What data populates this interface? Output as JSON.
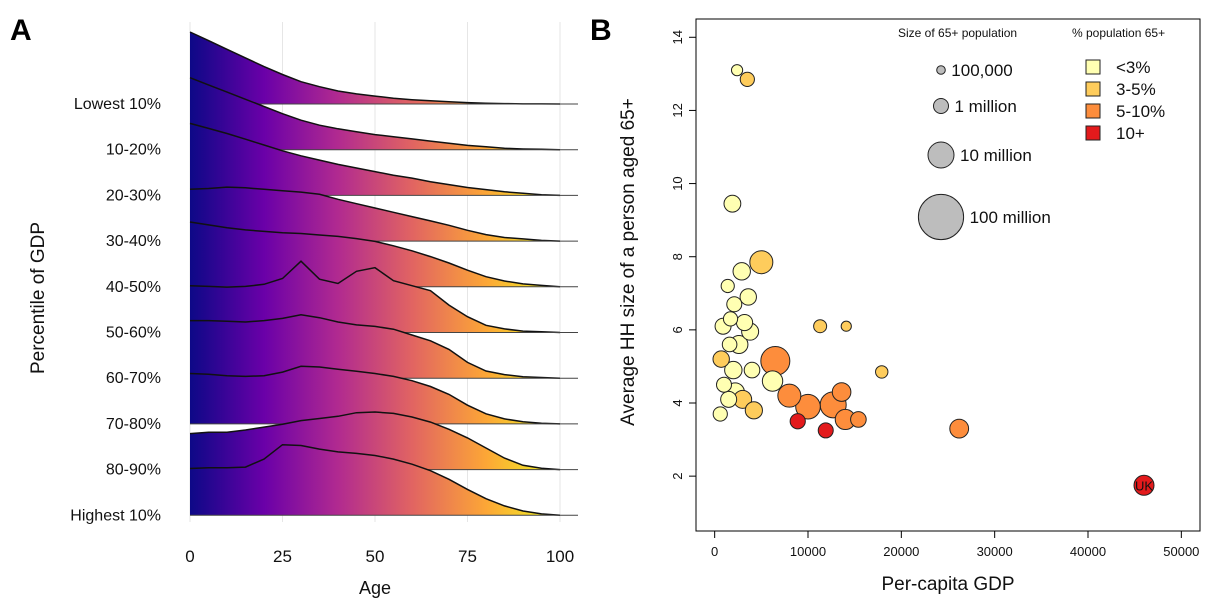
{
  "panels": {
    "a_letter": "A",
    "b_letter": "B"
  },
  "chart_data": [
    {
      "type": "area",
      "subtype": "ridgeline",
      "xlabel": "Age",
      "ylabel": "Percentile of GDP",
      "xlim": [
        0,
        100
      ],
      "xticks": [
        "0",
        "25",
        "50",
        "75",
        "100"
      ],
      "grid": "vertical",
      "fill_gradient": [
        "#0d0887",
        "#6a00a8",
        "#b12a90",
        "#e16462",
        "#fca636",
        "#f0f921"
      ],
      "x": [
        0,
        5,
        10,
        15,
        20,
        25,
        30,
        35,
        40,
        45,
        50,
        55,
        60,
        65,
        70,
        75,
        80,
        85,
        90,
        95,
        100
      ],
      "series": [
        {
          "name": "Lowest 10%",
          "values": [
            1.0,
            0.88,
            0.76,
            0.64,
            0.52,
            0.41,
            0.31,
            0.24,
            0.18,
            0.14,
            0.11,
            0.08,
            0.06,
            0.045,
            0.03,
            0.02,
            0.01,
            0.005,
            0.002,
            0.001,
            0
          ]
        },
        {
          "name": "10-20%",
          "values": [
            1.0,
            0.9,
            0.8,
            0.7,
            0.6,
            0.5,
            0.41,
            0.34,
            0.29,
            0.25,
            0.21,
            0.18,
            0.15,
            0.12,
            0.09,
            0.06,
            0.04,
            0.02,
            0.01,
            0.005,
            0
          ]
        },
        {
          "name": "20-30%",
          "values": [
            1.0,
            0.93,
            0.86,
            0.78,
            0.7,
            0.62,
            0.55,
            0.49,
            0.43,
            0.38,
            0.33,
            0.28,
            0.24,
            0.19,
            0.15,
            0.11,
            0.08,
            0.05,
            0.03,
            0.01,
            0
          ]
        },
        {
          "name": "30-40%",
          "values": [
            0.72,
            0.73,
            0.75,
            0.74,
            0.72,
            0.7,
            0.68,
            0.65,
            0.58,
            0.52,
            0.46,
            0.4,
            0.34,
            0.28,
            0.22,
            0.15,
            0.09,
            0.05,
            0.03,
            0.01,
            0
          ]
        },
        {
          "name": "40-50%",
          "values": [
            0.9,
            0.86,
            0.82,
            0.79,
            0.77,
            0.75,
            0.74,
            0.72,
            0.7,
            0.67,
            0.63,
            0.57,
            0.5,
            0.42,
            0.33,
            0.23,
            0.14,
            0.08,
            0.04,
            0.02,
            0
          ]
        },
        {
          "name": "50-60%",
          "values": [
            0.65,
            0.64,
            0.63,
            0.64,
            0.67,
            0.75,
            0.99,
            0.74,
            0.68,
            0.85,
            0.9,
            0.72,
            0.65,
            0.58,
            0.38,
            0.22,
            0.1,
            0.05,
            0.02,
            0.01,
            0
          ]
        },
        {
          "name": "60-70%",
          "values": [
            0.8,
            0.8,
            0.79,
            0.78,
            0.8,
            0.83,
            0.88,
            0.84,
            0.78,
            0.74,
            0.72,
            0.68,
            0.6,
            0.52,
            0.4,
            0.22,
            0.1,
            0.05,
            0.02,
            0.01,
            0
          ]
        },
        {
          "name": "70-80%",
          "values": [
            0.7,
            0.69,
            0.67,
            0.66,
            0.67,
            0.72,
            0.8,
            0.79,
            0.76,
            0.73,
            0.7,
            0.66,
            0.6,
            0.52,
            0.41,
            0.26,
            0.14,
            0.07,
            0.03,
            0.01,
            0
          ]
        },
        {
          "name": "80-90%",
          "values": [
            0.5,
            0.52,
            0.52,
            0.55,
            0.59,
            0.63,
            0.68,
            0.71,
            0.74,
            0.79,
            0.8,
            0.78,
            0.73,
            0.66,
            0.56,
            0.44,
            0.3,
            0.16,
            0.06,
            0.02,
            0
          ]
        },
        {
          "name": "Highest 10%",
          "values": [
            0.65,
            0.66,
            0.66,
            0.67,
            0.78,
            0.98,
            0.97,
            0.92,
            0.88,
            0.86,
            0.83,
            0.78,
            0.71,
            0.62,
            0.5,
            0.36,
            0.23,
            0.13,
            0.06,
            0.02,
            0
          ]
        }
      ]
    },
    {
      "type": "scatter",
      "subtype": "bubble",
      "xlabel": "Per-capita GDP",
      "ylabel": "Average HH size of a person aged 65+",
      "xlim": [
        -2000,
        52000
      ],
      "ylim": [
        0.5,
        14.5
      ],
      "xticks": [
        "0",
        "10000",
        "20000",
        "30000",
        "40000",
        "50000"
      ],
      "yticks": [
        "2",
        "4",
        "6",
        "8",
        "10",
        "12",
        "14"
      ],
      "grid": false,
      "size_legend": {
        "title": "Size of 65+ population",
        "entries": [
          {
            "label": "100,000",
            "pop": 100000
          },
          {
            "label": "1 million",
            "pop": 1000000
          },
          {
            "label": "10 million",
            "pop": 10000000
          },
          {
            "label": "100 million",
            "pop": 100000000
          }
        ]
      },
      "color_legend": {
        "title": "% population 65+",
        "entries": [
          {
            "label": "<3%",
            "color": "#ffffb2"
          },
          {
            "label": "3-5%",
            "color": "#fecc5c"
          },
          {
            "label": "5-10%",
            "color": "#fd8d3c"
          },
          {
            "label": "10+",
            "color": "#e31a1c"
          }
        ]
      },
      "points": [
        {
          "x": 2400,
          "y": 13.1,
          "pop": 300000,
          "cat": 0
        },
        {
          "x": 3500,
          "y": 12.85,
          "pop": 800000,
          "cat": 1
        },
        {
          "x": 1900,
          "y": 9.45,
          "pop": 1600000,
          "cat": 0
        },
        {
          "x": 5000,
          "y": 7.85,
          "pop": 6000000,
          "cat": 1
        },
        {
          "x": 2900,
          "y": 7.6,
          "pop": 1900000,
          "cat": 0
        },
        {
          "x": 1400,
          "y": 7.2,
          "pop": 600000,
          "cat": 0
        },
        {
          "x": 3600,
          "y": 6.9,
          "pop": 1500000,
          "cat": 0
        },
        {
          "x": 2100,
          "y": 6.7,
          "pop": 1000000,
          "cat": 0
        },
        {
          "x": 1700,
          "y": 6.3,
          "pop": 800000,
          "cat": 0
        },
        {
          "x": 3200,
          "y": 6.2,
          "pop": 1400000,
          "cat": 0
        },
        {
          "x": 900,
          "y": 6.1,
          "pop": 1300000,
          "cat": 0
        },
        {
          "x": 3800,
          "y": 5.95,
          "pop": 1700000,
          "cat": 0
        },
        {
          "x": 2600,
          "y": 5.6,
          "pop": 2200000,
          "cat": 0
        },
        {
          "x": 1600,
          "y": 5.6,
          "pop": 900000,
          "cat": 0
        },
        {
          "x": 700,
          "y": 5.2,
          "pop": 1500000,
          "cat": 1
        },
        {
          "x": 6500,
          "y": 5.15,
          "pop": 16000000,
          "cat": 2
        },
        {
          "x": 2000,
          "y": 4.9,
          "pop": 1900000,
          "cat": 0
        },
        {
          "x": 4000,
          "y": 4.9,
          "pop": 1200000,
          "cat": 0
        },
        {
          "x": 6200,
          "y": 4.6,
          "pop": 3600000,
          "cat": 0
        },
        {
          "x": 1000,
          "y": 4.5,
          "pop": 1000000,
          "cat": 0
        },
        {
          "x": 2200,
          "y": 4.3,
          "pop": 2400000,
          "cat": 0
        },
        {
          "x": 1500,
          "y": 4.1,
          "pop": 1300000,
          "cat": 0
        },
        {
          "x": 3000,
          "y": 4.1,
          "pop": 2200000,
          "cat": 1
        },
        {
          "x": 4200,
          "y": 3.8,
          "pop": 1800000,
          "cat": 1
        },
        {
          "x": 600,
          "y": 3.7,
          "pop": 800000,
          "cat": 0
        },
        {
          "x": 8000,
          "y": 4.2,
          "pop": 6000000,
          "cat": 2
        },
        {
          "x": 10000,
          "y": 3.9,
          "pop": 8000000,
          "cat": 2
        },
        {
          "x": 12700,
          "y": 3.95,
          "pop": 10000000,
          "cat": 2
        },
        {
          "x": 13600,
          "y": 4.3,
          "pop": 2500000,
          "cat": 2
        },
        {
          "x": 14000,
          "y": 3.55,
          "pop": 3500000,
          "cat": 2
        },
        {
          "x": 15400,
          "y": 3.55,
          "pop": 1200000,
          "cat": 2
        },
        {
          "x": 11300,
          "y": 6.1,
          "pop": 550000,
          "cat": 1
        },
        {
          "x": 14100,
          "y": 6.1,
          "pop": 200000,
          "cat": 1
        },
        {
          "x": 17900,
          "y": 4.85,
          "pop": 450000,
          "cat": 1
        },
        {
          "x": 8900,
          "y": 3.5,
          "pop": 1100000,
          "cat": 3
        },
        {
          "x": 11900,
          "y": 3.25,
          "pop": 1000000,
          "cat": 3
        },
        {
          "x": 26200,
          "y": 3.3,
          "pop": 2600000,
          "cat": 2
        },
        {
          "x": 46000,
          "y": 1.75,
          "pop": 3300000,
          "cat": 3,
          "label": "UK"
        }
      ]
    }
  ]
}
